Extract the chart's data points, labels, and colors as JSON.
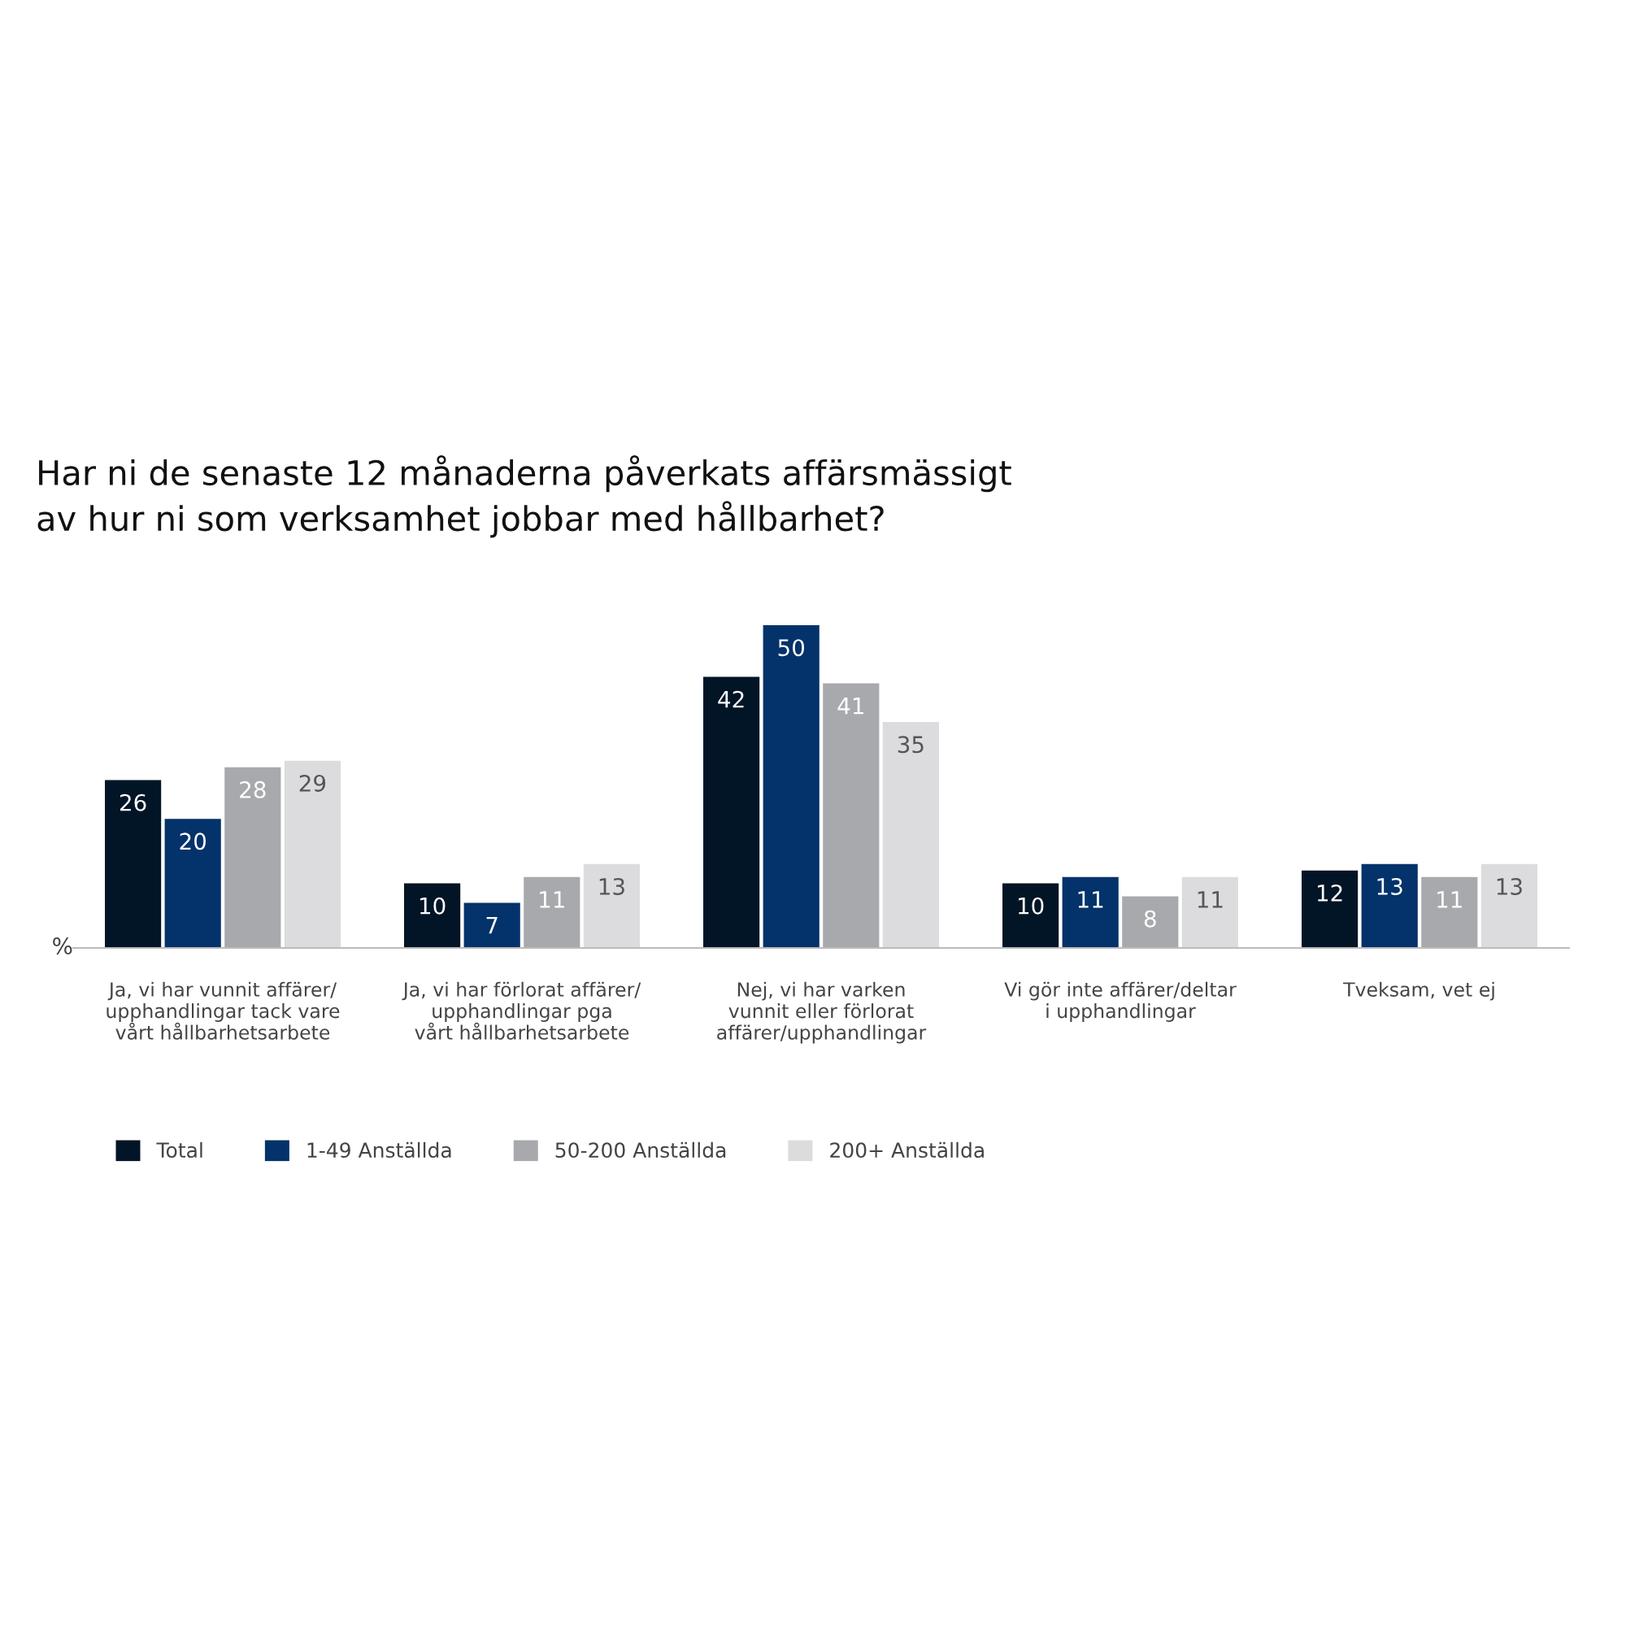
{
  "chart_data": {
    "type": "bar",
    "title": "Har ni de senaste 12 månaderna påverkats affärsmässigt\nav hur ni som verksamhet jobbar med hållbarhet?",
    "ylabel": "%",
    "categories": [
      "Ja, vi har vunnit affärer/\nupphandlingar tack vare\nvårt hållbarhetsarbete",
      "Ja, vi har förlorat affärer/\nupphandlingar pga\nvårt hållbarhetsarbete",
      "Nej, vi har varken\nvunnit eller förlorat\naffärer/upphandlingar",
      "Vi gör inte affärer/deltar\ni upphandlingar",
      "Tveksam, vet ej"
    ],
    "series": [
      {
        "name": "Total",
        "color": "#021526",
        "values": [
          26,
          10,
          42,
          10,
          12
        ]
      },
      {
        "name": "1-49 Anställda",
        "color": "#04326a",
        "values": [
          20,
          7,
          50,
          11,
          13
        ]
      },
      {
        "name": "50-200 Anställda",
        "color": "#a8a9ad",
        "values": [
          28,
          11,
          41,
          8,
          11
        ]
      },
      {
        "name": "200+ Anställda",
        "color": "#dcdcde",
        "values": [
          29,
          13,
          35,
          11,
          13
        ]
      }
    ],
    "ylim": [
      0,
      50
    ],
    "tick_labels": "x",
    "data_labels": true,
    "legend": "bottom left",
    "grid": false
  }
}
